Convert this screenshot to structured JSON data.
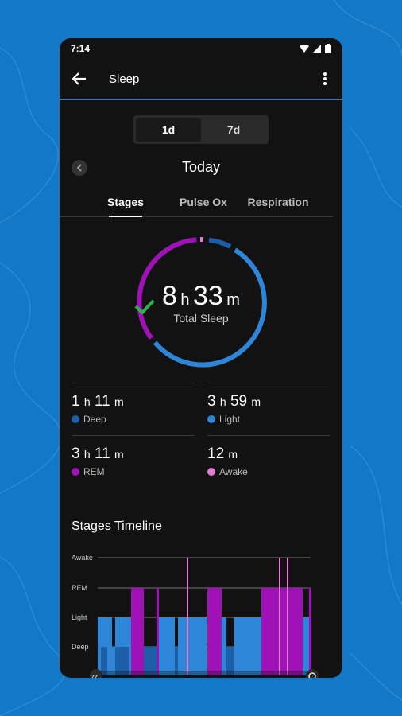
{
  "status": {
    "time": "7:14"
  },
  "appbar": {
    "title": "Sleep"
  },
  "range": {
    "options": [
      "1d",
      "7d"
    ],
    "selected": "1d"
  },
  "date": {
    "label": "Today"
  },
  "tabs": [
    "Stages",
    "Pulse Ox",
    "Respiration"
  ],
  "summary": {
    "hours": "8",
    "hours_unit": "h",
    "minutes": "33",
    "minutes_unit": "m",
    "label": "Total Sleep"
  },
  "stages": [
    {
      "hours": "1",
      "h": "h",
      "minutes": "11",
      "m": "m",
      "label": "Deep",
      "color": "#1c5ea8"
    },
    {
      "hours": "3",
      "h": "h",
      "minutes": "59",
      "m": "m",
      "label": "Light",
      "color": "#2e86d8"
    },
    {
      "hours": "3",
      "h": "h",
      "minutes": "11",
      "m": "m",
      "label": "REM",
      "color": "#a012b8"
    },
    {
      "hours": "",
      "h": "",
      "minutes": "12",
      "m": "m",
      "label": "Awake",
      "color": "#e57ad8"
    }
  ],
  "timeline": {
    "title": "Stages Timeline",
    "levels": [
      "Awake",
      "REM",
      "Light",
      "Deep"
    ]
  },
  "colors": {
    "deep": "#1c5ea8",
    "light": "#2e86d8",
    "rem": "#a012b8",
    "awake": "#e57ad8",
    "check": "#2fb04a"
  }
}
